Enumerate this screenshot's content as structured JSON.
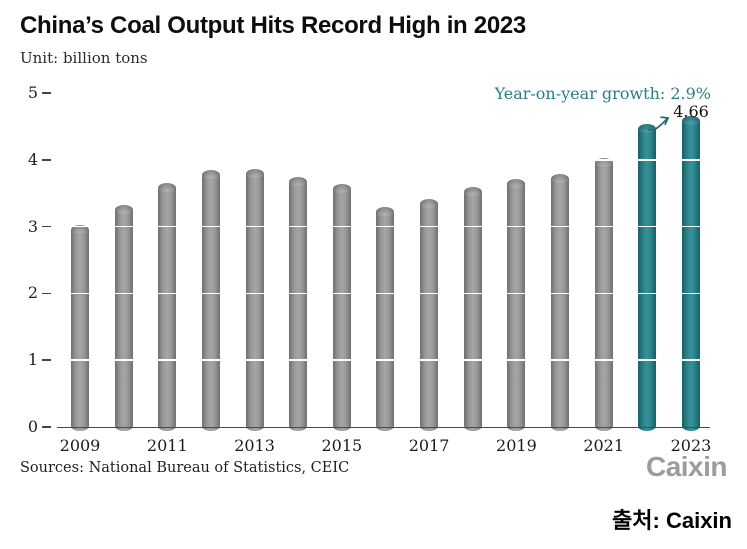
{
  "header": {
    "title": "China’s Coal Output Hits Record High in 2023",
    "unit_label": "Unit: billion tons"
  },
  "chart_data": {
    "type": "bar",
    "title": "China’s Coal Output Hits Record High in 2023",
    "unit": "billion tons",
    "categories": [
      "2009",
      "2010",
      "2011",
      "2012",
      "2013",
      "2014",
      "2015",
      "2016",
      "2017",
      "2018",
      "2019",
      "2020",
      "2021",
      "2022",
      "2023"
    ],
    "values": [
      3.03,
      3.33,
      3.65,
      3.84,
      3.86,
      3.75,
      3.64,
      3.3,
      3.42,
      3.6,
      3.72,
      3.78,
      4.02,
      4.53,
      4.66
    ],
    "highlight_categories": [
      "2022",
      "2023"
    ],
    "x_tick_labels": [
      "2009",
      "2011",
      "2013",
      "2015",
      "2017",
      "2019",
      "2021",
      "2023"
    ],
    "y_ticks": [
      0,
      1,
      2,
      3,
      4,
      5
    ],
    "ylim": [
      0,
      5
    ],
    "grid": "white integer gridlines drawn over bars",
    "legend": "none",
    "annotation": {
      "growth_text": "Year-on-year growth: 2.9%",
      "value_label": "4.66",
      "value_label_category": "2023"
    },
    "colors": {
      "bar_gray": "#989898",
      "bar_highlight_teal": "#2b828a",
      "annotation_text": "#2a7d86",
      "axis_line": "#4a4a4a"
    }
  },
  "footer": {
    "sources": "Sources: National Bureau of Statistics, CEIC",
    "logo_text": "Caixin",
    "attribution": "출처: Caixin"
  }
}
